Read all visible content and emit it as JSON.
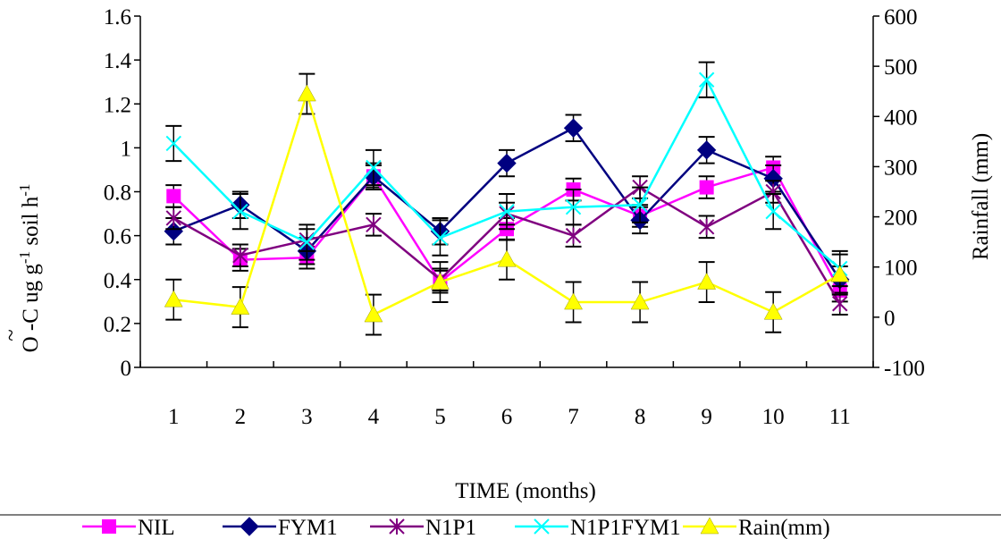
{
  "chart_data": {
    "type": "line",
    "x_label": "TIME (months)",
    "y_left_label_main": "O    -C ug g",
    "y_left_label_exp1": "-1",
    "y_left_label_soil": " soil h",
    "y_left_label_exp2": "-1",
    "y_left_label_top": "~",
    "y_right_label": "Rainfall      (mm)",
    "categories": [
      "1",
      "2",
      "3",
      "4",
      "5",
      "6",
      "7",
      "8",
      "9",
      "10",
      "11"
    ],
    "y_left": {
      "min": 0,
      "max": 1.6,
      "step": 0.2,
      "ticks": [
        "0",
        "0.2",
        "0.4",
        "0.6",
        "0.8",
        "1",
        "1.2",
        "1.4",
        "1.6"
      ]
    },
    "y_right": {
      "min": -100,
      "max": 600,
      "step": 100,
      "ticks": [
        "-100",
        "0",
        "100",
        "200",
        "300",
        "400",
        "500",
        "600"
      ]
    },
    "series": [
      {
        "name": "NIL",
        "color": "#ff00ff",
        "marker": "square",
        "axis": "left",
        "values": [
          0.78,
          0.49,
          0.5,
          0.87,
          0.39,
          0.63,
          0.81,
          0.69,
          0.82,
          0.91,
          0.35
        ],
        "error": 0.05
      },
      {
        "name": "FYM1",
        "color": "#000080",
        "marker": "diamond",
        "axis": "left",
        "values": [
          0.62,
          0.74,
          0.53,
          0.87,
          0.62,
          0.93,
          1.09,
          0.67,
          0.99,
          0.86,
          0.4
        ],
        "error": 0.06
      },
      {
        "name": "N1P1",
        "color": "#800080",
        "marker": "star",
        "axis": "left",
        "values": [
          0.68,
          0.51,
          0.58,
          0.65,
          0.4,
          0.7,
          0.6,
          0.82,
          0.64,
          0.8,
          0.29
        ],
        "error": 0.05
      },
      {
        "name": "N1P1FYM1",
        "color": "#00ffff",
        "marker": "x",
        "axis": "left",
        "values": [
          1.02,
          0.71,
          0.57,
          0.91,
          0.59,
          0.71,
          0.73,
          0.74,
          1.31,
          0.71,
          0.45
        ],
        "error": 0.08
      },
      {
        "name": "Rain(mm)",
        "color": "#ffff00",
        "marker": "triangle",
        "axis": "right",
        "values": [
          35,
          20,
          445,
          5,
          70,
          115,
          30,
          30,
          70,
          10,
          85
        ],
        "error": 40
      }
    ]
  }
}
